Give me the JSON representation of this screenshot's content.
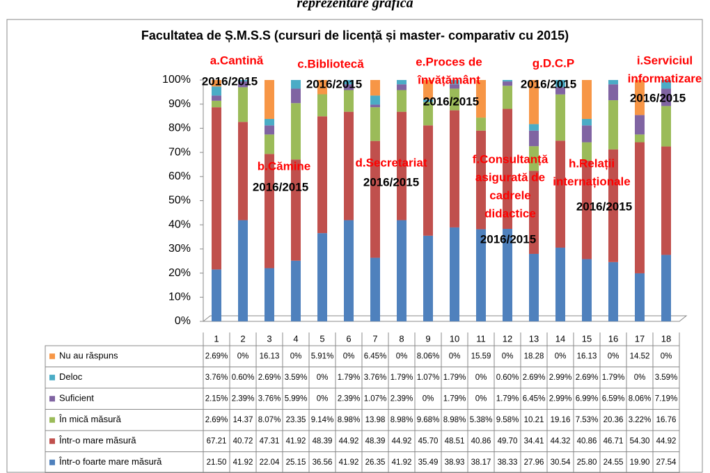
{
  "chart_data": {
    "type": "bar",
    "stacked": true,
    "heading": "reprezentare grafică",
    "title": "Facultatea de Ș.M.S.S (cursuri de licență și master- comparativ cu 2015)",
    "categories": [
      "1",
      "2",
      "3",
      "4",
      "5",
      "6",
      "7",
      "8",
      "9",
      "10",
      "11",
      "12",
      "13",
      "14",
      "15",
      "16",
      "17",
      "18"
    ],
    "ylim": [
      0,
      100
    ],
    "yticks": [
      {
        "value": 0,
        "label": "0%"
      },
      {
        "value": 10,
        "label": "10%"
      },
      {
        "value": 20,
        "label": "20%"
      },
      {
        "value": 30,
        "label": "30%"
      },
      {
        "value": 40,
        "label": "40%"
      },
      {
        "value": 50,
        "label": "50%"
      },
      {
        "value": 60,
        "label": "60%"
      },
      {
        "value": 70,
        "label": "70%"
      },
      {
        "value": 80,
        "label": "80%"
      },
      {
        "value": 90,
        "label": "90%"
      },
      {
        "value": 100,
        "label": "100%"
      }
    ],
    "grid": false,
    "series": [
      {
        "name": "Într-o foarte mare măsură",
        "color": "#4f81bd",
        "values": [
          21.5,
          41.92,
          22.04,
          25.15,
          36.56,
          41.92,
          26.35,
          41.92,
          35.49,
          38.93,
          38.17,
          38.33,
          27.96,
          30.54,
          25.8,
          24.55,
          19.9,
          27.54
        ],
        "value_labels": [
          "21.50",
          "41.92",
          "22.04",
          "25.15",
          "36.56",
          "41.92",
          "26.35",
          "41.92",
          "35.49",
          "38.93",
          "38.17",
          "38.33",
          "27.96",
          "30.54",
          "25.80",
          "24.55",
          "19.90",
          "27.54"
        ]
      },
      {
        "name": "Într-o mare măsură",
        "color": "#c0504d",
        "values": [
          67.21,
          40.72,
          47.31,
          41.92,
          48.39,
          44.92,
          48.39,
          44.92,
          45.7,
          48.51,
          40.86,
          49.7,
          34.41,
          44.32,
          40.86,
          46.71,
          54.3,
          44.92
        ],
        "value_labels": [
          "67.21",
          "40.72",
          "47.31",
          "41.92",
          "48.39",
          "44.92",
          "48.39",
          "44.92",
          "45.70",
          "48.51",
          "40.86",
          "49.70",
          "34.41",
          "44.32",
          "40.86",
          "46.71",
          "54.30",
          "44.92"
        ]
      },
      {
        "name": "În mică măsură",
        "color": "#9bbb59",
        "values": [
          2.69,
          14.37,
          8.07,
          23.35,
          9.14,
          8.98,
          13.98,
          8.98,
          9.68,
          8.98,
          5.38,
          9.58,
          10.21,
          19.16,
          7.53,
          20.36,
          3.22,
          16.76
        ],
        "value_labels": [
          "2.69%",
          "14.37",
          "8.07%",
          "23.35",
          "9.14%",
          "8.98%",
          "13.98",
          "8.98%",
          "9.68%",
          "8.98%",
          "5.38%",
          "9.58%",
          "10.21",
          "19.16",
          "7.53%",
          "20.36",
          "3.22%",
          "16.76"
        ]
      },
      {
        "name": "Suficient",
        "color": "#8064a2",
        "values": [
          2.15,
          2.39,
          3.76,
          5.99,
          0,
          2.39,
          1.07,
          2.39,
          0,
          1.79,
          0,
          1.79,
          6.45,
          2.99,
          6.99,
          6.59,
          8.06,
          7.19
        ],
        "value_labels": [
          "2.15%",
          "2.39%",
          "3.76%",
          "5.99%",
          "0%",
          "2.39%",
          "1.07%",
          "2.39%",
          "0%",
          "1.79%",
          "0%",
          "1.79%",
          "6.45%",
          "2.99%",
          "6.99%",
          "6.59%",
          "8.06%",
          "7.19%"
        ]
      },
      {
        "name": "Deloc",
        "color": "#4bacc6",
        "values": [
          3.76,
          0.6,
          2.69,
          3.59,
          0,
          1.79,
          3.76,
          1.79,
          1.07,
          1.79,
          0,
          0.6,
          2.69,
          2.99,
          2.69,
          1.79,
          0,
          3.59
        ],
        "value_labels": [
          "3.76%",
          "0.60%",
          "2.69%",
          "3.59%",
          "0%",
          "1.79%",
          "3.76%",
          "1.79%",
          "1.07%",
          "1.79%",
          "0%",
          "0.60%",
          "2.69%",
          "2.99%",
          "2.69%",
          "1.79%",
          "0%",
          "3.59%"
        ]
      },
      {
        "name": "Nu au răspuns",
        "color": "#f79646",
        "values": [
          2.69,
          0,
          16.13,
          0,
          5.91,
          0,
          6.45,
          0,
          8.06,
          0,
          15.59,
          0,
          18.28,
          0,
          16.13,
          0,
          14.52,
          0
        ],
        "value_labels": [
          "2.69%",
          "0%",
          "16.13",
          "0%",
          "5.91%",
          "0%",
          "6.45%",
          "0%",
          "8.06%",
          "0%",
          "15.59",
          "0%",
          "18.28",
          "0%",
          "16.13",
          "0%",
          "14.52",
          "0%"
        ]
      }
    ],
    "annotations": [
      {
        "lines": [
          "a.Cantină"
        ],
        "period": "2016/2015"
      },
      {
        "lines": [
          "b.Cămine"
        ],
        "period": "2016/2015"
      },
      {
        "lines": [
          "c.Bibliotecă"
        ],
        "period": "2016/2015"
      },
      {
        "lines": [
          "d.Secretariat"
        ],
        "period": "2016/2015"
      },
      {
        "lines": [
          "e.Proces de",
          "învățământ"
        ],
        "period": "2016/2015"
      },
      {
        "lines": [
          "f.Consultanță",
          "asigurată de",
          "cadrele",
          "didactice"
        ],
        "period": "2016/2015"
      },
      {
        "lines": [
          "g.D.C.P"
        ],
        "period": "2016/2015"
      },
      {
        "lines": [
          "h.Relații",
          "internaționale"
        ],
        "period": "2016/2015"
      },
      {
        "lines": [
          "i.Serviciul",
          "informatizare"
        ],
        "period": "2016/2015"
      }
    ]
  }
}
